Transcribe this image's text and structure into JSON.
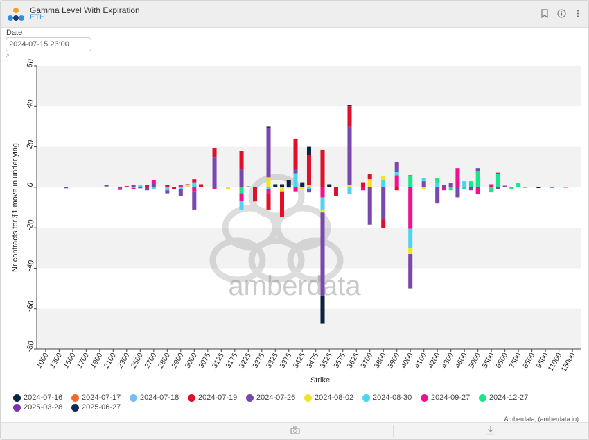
{
  "header": {
    "title": "Gamma Level With Expiration",
    "subtitle": "ETH"
  },
  "controls": {
    "date_label": "Date",
    "date_value": "2024-07-15 23:00"
  },
  "watermark": "amberdata",
  "credit": "Amberdata, (amberdata.io)",
  "colors": {
    "bg_band": "#f2f2f2",
    "axis": "#333333"
  },
  "chart_data": {
    "type": "bar",
    "stacked": true,
    "xlabel": "Strike",
    "ylabel": "Nr contracts for $1 move in underlying",
    "ylim": [
      -80,
      60
    ],
    "yticks": [
      60,
      40,
      20,
      0,
      -20,
      -40,
      -60,
      -80
    ],
    "categories": [
      "1000",
      "1300",
      "1500",
      "1700",
      "1900",
      "2100",
      "2300",
      "2500",
      "2700",
      "2800",
      "2900",
      "3000",
      "3075",
      "3125",
      "3175",
      "3225",
      "3275",
      "3325",
      "3375",
      "3425",
      "3475",
      "3525",
      "3575",
      "3625",
      "3700",
      "3800",
      "3900",
      "4000",
      "4100",
      "4200",
      "4300",
      "4600",
      "5000",
      "5500",
      "6500",
      "7500",
      "8500",
      "9500",
      "11000",
      "15000"
    ],
    "bar_slots": [
      {
        "label": "1000",
        "segs": []
      },
      {
        "label": "",
        "segs": []
      },
      {
        "label": "1300",
        "segs": []
      },
      {
        "label": "",
        "segs": [
          [
            "2024-07-26",
            -0.5
          ]
        ]
      },
      {
        "label": "1500",
        "segs": []
      },
      {
        "label": "",
        "segs": []
      },
      {
        "label": "1700",
        "segs": []
      },
      {
        "label": "",
        "segs": []
      },
      {
        "label": "1900",
        "segs": [
          [
            "2024-07-19",
            0.3
          ]
        ]
      },
      {
        "label": "",
        "segs": [
          [
            "2024-12-27",
            0.5
          ],
          [
            "2024-07-26",
            0.5
          ]
        ]
      },
      {
        "label": "2100",
        "segs": [
          [
            "2024-09-27",
            0.3
          ]
        ]
      },
      {
        "label": "",
        "segs": [
          [
            "2024-07-26",
            -0.5
          ],
          [
            "2024-09-27",
            -0.8
          ]
        ]
      },
      {
        "label": "2300",
        "segs": [
          [
            "2024-07-19",
            0.6
          ]
        ]
      },
      {
        "label": "",
        "segs": [
          [
            "2024-07-26",
            1.0
          ],
          [
            "2024-08-30",
            -0.4
          ],
          [
            "2024-09-27",
            -0.4
          ]
        ]
      },
      {
        "label": "2500",
        "segs": [
          [
            "2024-08-30",
            1.2
          ],
          [
            "2024-07-26",
            -0.5
          ]
        ]
      },
      {
        "label": "",
        "segs": [
          [
            "2024-07-19",
            1.0
          ],
          [
            "2024-07-26",
            -1.5
          ]
        ]
      },
      {
        "label": "2700",
        "segs": [
          [
            "2024-07-26",
            2.0
          ],
          [
            "2024-09-27",
            1.5
          ],
          [
            "2024-08-30",
            -1.0
          ]
        ]
      },
      {
        "label": "",
        "segs": []
      },
      {
        "label": "2800",
        "segs": [
          [
            "2024-07-19",
            1.0
          ],
          [
            "2024-08-30",
            -1.5
          ],
          [
            "2024-07-26",
            -1.5
          ]
        ]
      },
      {
        "label": "",
        "segs": [
          [
            "2024-07-19",
            -0.8
          ]
        ]
      },
      {
        "label": "2900",
        "segs": [
          [
            "2024-09-27",
            1.0
          ],
          [
            "2024-08-30",
            -1.0
          ],
          [
            "2024-07-26",
            -3.5
          ]
        ]
      },
      {
        "label": "",
        "segs": [
          [
            "2024-08-02",
            1.0
          ],
          [
            "2024-07-19",
            0.5
          ]
        ]
      },
      {
        "label": "3000",
        "segs": [
          [
            "2024-08-30",
            2.5
          ],
          [
            "2024-07-19",
            1.5
          ],
          [
            "2024-09-27",
            -2.0
          ],
          [
            "2024-07-26",
            -9.0
          ]
        ]
      },
      {
        "label": "",
        "segs": [
          [
            "2024-07-19",
            1.5
          ]
        ]
      },
      {
        "label": "3075",
        "segs": []
      },
      {
        "label": "",
        "segs": [
          [
            "2024-07-26",
            15
          ],
          [
            "2024-07-19",
            4.5
          ],
          [
            "2024-09-27",
            -1.0
          ]
        ]
      },
      {
        "label": "3125",
        "segs": []
      },
      {
        "label": "",
        "segs": [
          [
            "2024-08-02",
            -1.0
          ]
        ]
      },
      {
        "label": "3175",
        "segs": [
          [
            "2024-06-27",
            0.3
          ]
        ]
      },
      {
        "label": "",
        "segs": [
          [
            "2024-12-27",
            -3.0
          ],
          [
            "2024-09-27",
            -4.0
          ],
          [
            "2024-08-30",
            -4.0
          ],
          [
            "2024-07-26",
            9.0
          ],
          [
            "2024-07-19",
            9.0
          ]
        ]
      },
      {
        "label": "3225",
        "segs": [
          [
            "2024-06-27",
            0.4
          ]
        ]
      },
      {
        "label": "",
        "segs": [
          [
            "2024-07-19",
            -7.0
          ]
        ]
      },
      {
        "label": "3275",
        "segs": [
          [
            "2024-06-27",
            0.3
          ]
        ]
      },
      {
        "label": "",
        "segs": [
          [
            "2024-08-02",
            5.0
          ],
          [
            "2024-07-26",
            24.5
          ],
          [
            "2024-07-16",
            0.5
          ],
          [
            "2024-08-30",
            -1.0
          ],
          [
            "2024-09-27",
            -2.0
          ],
          [
            "2024-07-19",
            -8.0
          ]
        ]
      },
      {
        "label": "3325",
        "segs": [
          [
            "2024-07-16",
            1.5
          ]
        ]
      },
      {
        "label": "",
        "segs": [
          [
            "2024-07-16",
            1.5
          ],
          [
            "2024-08-02",
            -2.0
          ],
          [
            "2024-07-19",
            -12.5
          ]
        ]
      },
      {
        "label": "3375",
        "segs": [
          [
            "2024-07-16",
            3.5
          ],
          [
            "2024-08-02",
            -0.5
          ]
        ]
      },
      {
        "label": "",
        "segs": [
          [
            "2024-08-30",
            7.0
          ],
          [
            "2024-07-26",
            2.0
          ],
          [
            "2024-07-19",
            15.0
          ],
          [
            "2024-09-27",
            -2.0
          ]
        ]
      },
      {
        "label": "3425",
        "segs": [
          [
            "2024-07-16",
            2.5
          ],
          [
            "2024-08-02",
            -1.0
          ]
        ]
      },
      {
        "label": "",
        "segs": [
          [
            "2024-08-02",
            1.0
          ],
          [
            "2024-07-19",
            15.0
          ],
          [
            "2024-07-16",
            4.0
          ],
          [
            "2024-08-30",
            -1.0
          ],
          [
            "2024-07-26",
            -1.5
          ]
        ]
      },
      {
        "label": "3475",
        "segs": []
      },
      {
        "label": "",
        "segs": [
          [
            "2024-07-19",
            18.5
          ],
          [
            "2024-09-27",
            -5.0
          ],
          [
            "2024-08-30",
            -6.0
          ],
          [
            "2024-08-02",
            -1.5
          ],
          [
            "2024-07-26",
            -41.0
          ],
          [
            "2024-07-16",
            -14.0
          ]
        ]
      },
      {
        "label": "3525",
        "segs": [
          [
            "2024-07-16",
            1.5
          ]
        ]
      },
      {
        "label": "",
        "segs": [
          [
            "2024-07-19",
            -4.5
          ]
        ]
      },
      {
        "label": "3575",
        "segs": []
      },
      {
        "label": "",
        "segs": [
          [
            "2024-08-02",
            1.0
          ],
          [
            "2024-07-26",
            29.0
          ],
          [
            "2024-07-19",
            10.0
          ],
          [
            "2024-06-27",
            0.5
          ],
          [
            "2024-08-30",
            -3.5
          ]
        ]
      },
      {
        "label": "3625",
        "segs": []
      },
      {
        "label": "",
        "segs": [
          [
            "2024-07-19",
            2.5
          ],
          [
            "2024-09-27",
            -1.5
          ]
        ]
      },
      {
        "label": "3700",
        "segs": [
          [
            "2024-08-02",
            4.0
          ],
          [
            "2024-07-19",
            2.5
          ],
          [
            "2024-07-26",
            -18.5
          ]
        ]
      },
      {
        "label": "",
        "segs": []
      },
      {
        "label": "3800",
        "segs": [
          [
            "2024-08-30",
            3.5
          ],
          [
            "2024-08-02",
            2.0
          ],
          [
            "2024-07-26",
            -16.0
          ],
          [
            "2024-07-19",
            -4.0
          ]
        ]
      },
      {
        "label": "",
        "segs": []
      },
      {
        "label": "3900",
        "segs": [
          [
            "2024-09-27",
            6.0
          ],
          [
            "2024-08-30",
            1.5
          ],
          [
            "2024-07-26",
            5.0
          ],
          [
            "2024-07-19",
            -1.5
          ]
        ]
      },
      {
        "label": "",
        "segs": []
      },
      {
        "label": "4000",
        "segs": [
          [
            "2024-12-27",
            5.5
          ],
          [
            "2024-07-19",
            0.5
          ],
          [
            "2024-09-27",
            -20.5
          ],
          [
            "2024-08-30",
            -9.5
          ],
          [
            "2024-08-02",
            -3.0
          ],
          [
            "2024-07-26",
            -17.0
          ]
        ]
      },
      {
        "label": "",
        "segs": []
      },
      {
        "label": "4100",
        "segs": [
          [
            "2024-07-26",
            3.0
          ],
          [
            "2024-08-30",
            1.5
          ],
          [
            "2024-08-02",
            -1.0
          ]
        ]
      },
      {
        "label": "",
        "segs": []
      },
      {
        "label": "4200",
        "segs": [
          [
            "2024-08-30",
            2.0
          ],
          [
            "2024-12-27",
            2.5
          ],
          [
            "2024-07-26",
            -8.0
          ]
        ]
      },
      {
        "label": "",
        "segs": [
          [
            "2024-07-26",
            1.0
          ],
          [
            "2024-09-27",
            -1.5
          ]
        ]
      },
      {
        "label": "4300",
        "segs": [
          [
            "2024-07-26",
            2.0
          ],
          [
            "2024-12-27",
            -1.5
          ]
        ]
      },
      {
        "label": "",
        "segs": [
          [
            "2024-09-27",
            9.5
          ],
          [
            "2024-07-26",
            -5.0
          ]
        ]
      },
      {
        "label": "4600",
        "segs": [
          [
            "2024-08-30",
            3.0
          ],
          [
            "2024-12-27",
            -1.0
          ]
        ]
      },
      {
        "label": "",
        "segs": [
          [
            "2024-12-27",
            3.0
          ],
          [
            "2024-07-26",
            -1.5
          ]
        ]
      },
      {
        "label": "5000",
        "segs": [
          [
            "2024-12-27",
            8.0
          ],
          [
            "2024-07-26",
            1.5
          ],
          [
            "2024-09-27",
            -3.5
          ]
        ]
      },
      {
        "label": "",
        "segs": []
      },
      {
        "label": "5500",
        "segs": [
          [
            "2024-09-27",
            1.5
          ],
          [
            "2024-12-27",
            -2.5
          ]
        ]
      },
      {
        "label": "",
        "segs": [
          [
            "2024-12-27",
            6.5
          ],
          [
            "2024-09-27",
            0.8
          ],
          [
            "2024-07-26",
            -1.0
          ]
        ]
      },
      {
        "label": "6500",
        "segs": [
          [
            "2024-07-26",
            0.8
          ]
        ]
      },
      {
        "label": "",
        "segs": [
          [
            "2024-12-27",
            -1.0
          ]
        ]
      },
      {
        "label": "7500",
        "segs": [
          [
            "2024-12-27",
            2.0
          ]
        ]
      },
      {
        "label": "",
        "segs": [
          [
            "2024-12-27",
            -0.3
          ]
        ]
      },
      {
        "label": "8500",
        "segs": []
      },
      {
        "label": "",
        "segs": [
          [
            "2024-07-16",
            -0.4
          ]
        ]
      },
      {
        "label": "9500",
        "segs": []
      },
      {
        "label": "",
        "segs": [
          [
            "2024-09-27",
            -0.3
          ]
        ]
      },
      {
        "label": "11000",
        "segs": []
      },
      {
        "label": "",
        "segs": [
          [
            "2024-12-27",
            -0.3
          ]
        ]
      },
      {
        "label": "15000",
        "segs": []
      }
    ],
    "series": [
      {
        "name": "2024-07-16",
        "color": "#0b2340"
      },
      {
        "name": "2024-07-17",
        "color": "#f26a2a"
      },
      {
        "name": "2024-07-18",
        "color": "#7dbbf0"
      },
      {
        "name": "2024-07-19",
        "color": "#e0102a"
      },
      {
        "name": "2024-07-26",
        "color": "#7a48ad"
      },
      {
        "name": "2024-08-02",
        "color": "#f2e32a"
      },
      {
        "name": "2024-08-30",
        "color": "#4fd4ef"
      },
      {
        "name": "2024-09-27",
        "color": "#f0128c"
      },
      {
        "name": "2024-12-27",
        "color": "#19e58a"
      },
      {
        "name": "2025-03-28",
        "color": "#7a34b0"
      },
      {
        "name": "2025-06-27",
        "color": "#0b2b54"
      }
    ],
    "series_alias": {
      "2024-06-27": "2025-06-27"
    },
    "grid": false,
    "legend_position": "bottom"
  }
}
